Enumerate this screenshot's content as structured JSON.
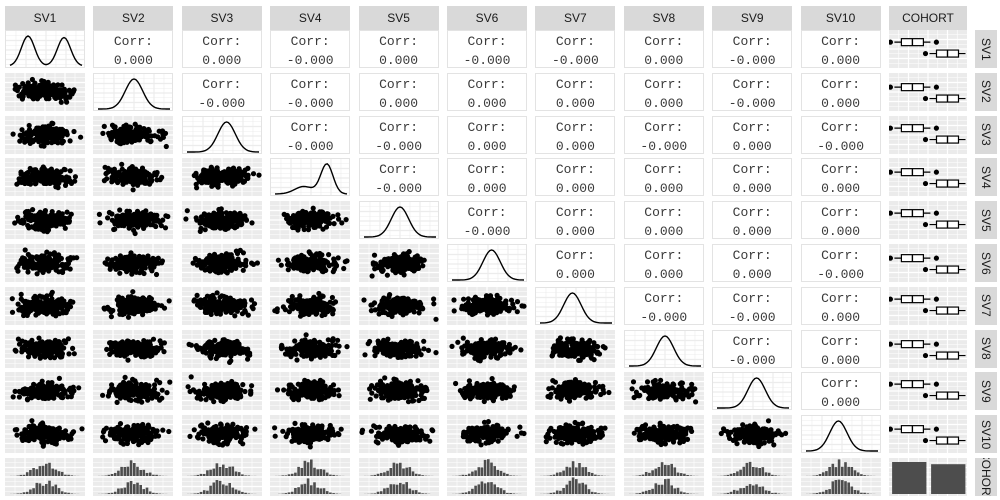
{
  "chart_data": {
    "type": "scatter",
    "chart_kind": "generalized pairs plot",
    "variables": [
      "SV1",
      "SV2",
      "SV3",
      "SV4",
      "SV5",
      "SV6",
      "SV7",
      "SV8",
      "SV9",
      "SV10"
    ],
    "group_variable": "COHORT",
    "corr_label": "Corr:",
    "correlations": [
      [
        "",
        "0.000",
        "0.000",
        "-0.000",
        "0.000",
        "-0.000",
        "-0.000",
        "0.000",
        "-0.000",
        "0.000"
      ],
      [
        "",
        "",
        "-0.000",
        "-0.000",
        "0.000",
        "0.000",
        "0.000",
        "0.000",
        "-0.000",
        "0.000"
      ],
      [
        "",
        "",
        "",
        "-0.000",
        "-0.000",
        "0.000",
        "0.000",
        "-0.000",
        "0.000",
        "-0.000"
      ],
      [
        "",
        "",
        "",
        "",
        "-0.000",
        "0.000",
        "0.000",
        "0.000",
        "0.000",
        "0.000"
      ],
      [
        "",
        "",
        "",
        "",
        "",
        "-0.000",
        "0.000",
        "0.000",
        "0.000",
        "0.000"
      ],
      [
        "",
        "",
        "",
        "",
        "",
        "",
        "0.000",
        "0.000",
        "0.000",
        "-0.000"
      ],
      [
        "",
        "",
        "",
        "",
        "",
        "",
        "",
        "-0.000",
        "-0.000",
        "0.000"
      ],
      [
        "",
        "",
        "",
        "",
        "",
        "",
        "",
        "",
        "-0.000",
        "0.000"
      ],
      [
        "",
        "",
        "",
        "",
        "",
        "",
        "",
        "",
        "",
        "0.000"
      ],
      [
        "",
        "",
        "",
        "",
        "",
        "",
        "",
        "",
        "",
        ""
      ]
    ],
    "diagonal": "density",
    "lower": "scatter",
    "group_column": "boxplot by COHORT",
    "group_row": "histogram by COHORT",
    "group_corner": "bar counts",
    "cohort_bar_values": [
      1.0,
      0.93
    ],
    "grid": true,
    "colors": {
      "panel_background": "#ebebeb",
      "strip_background": "#d9d9d9",
      "marks": "#000000",
      "bars": "#4d4d4d"
    }
  }
}
